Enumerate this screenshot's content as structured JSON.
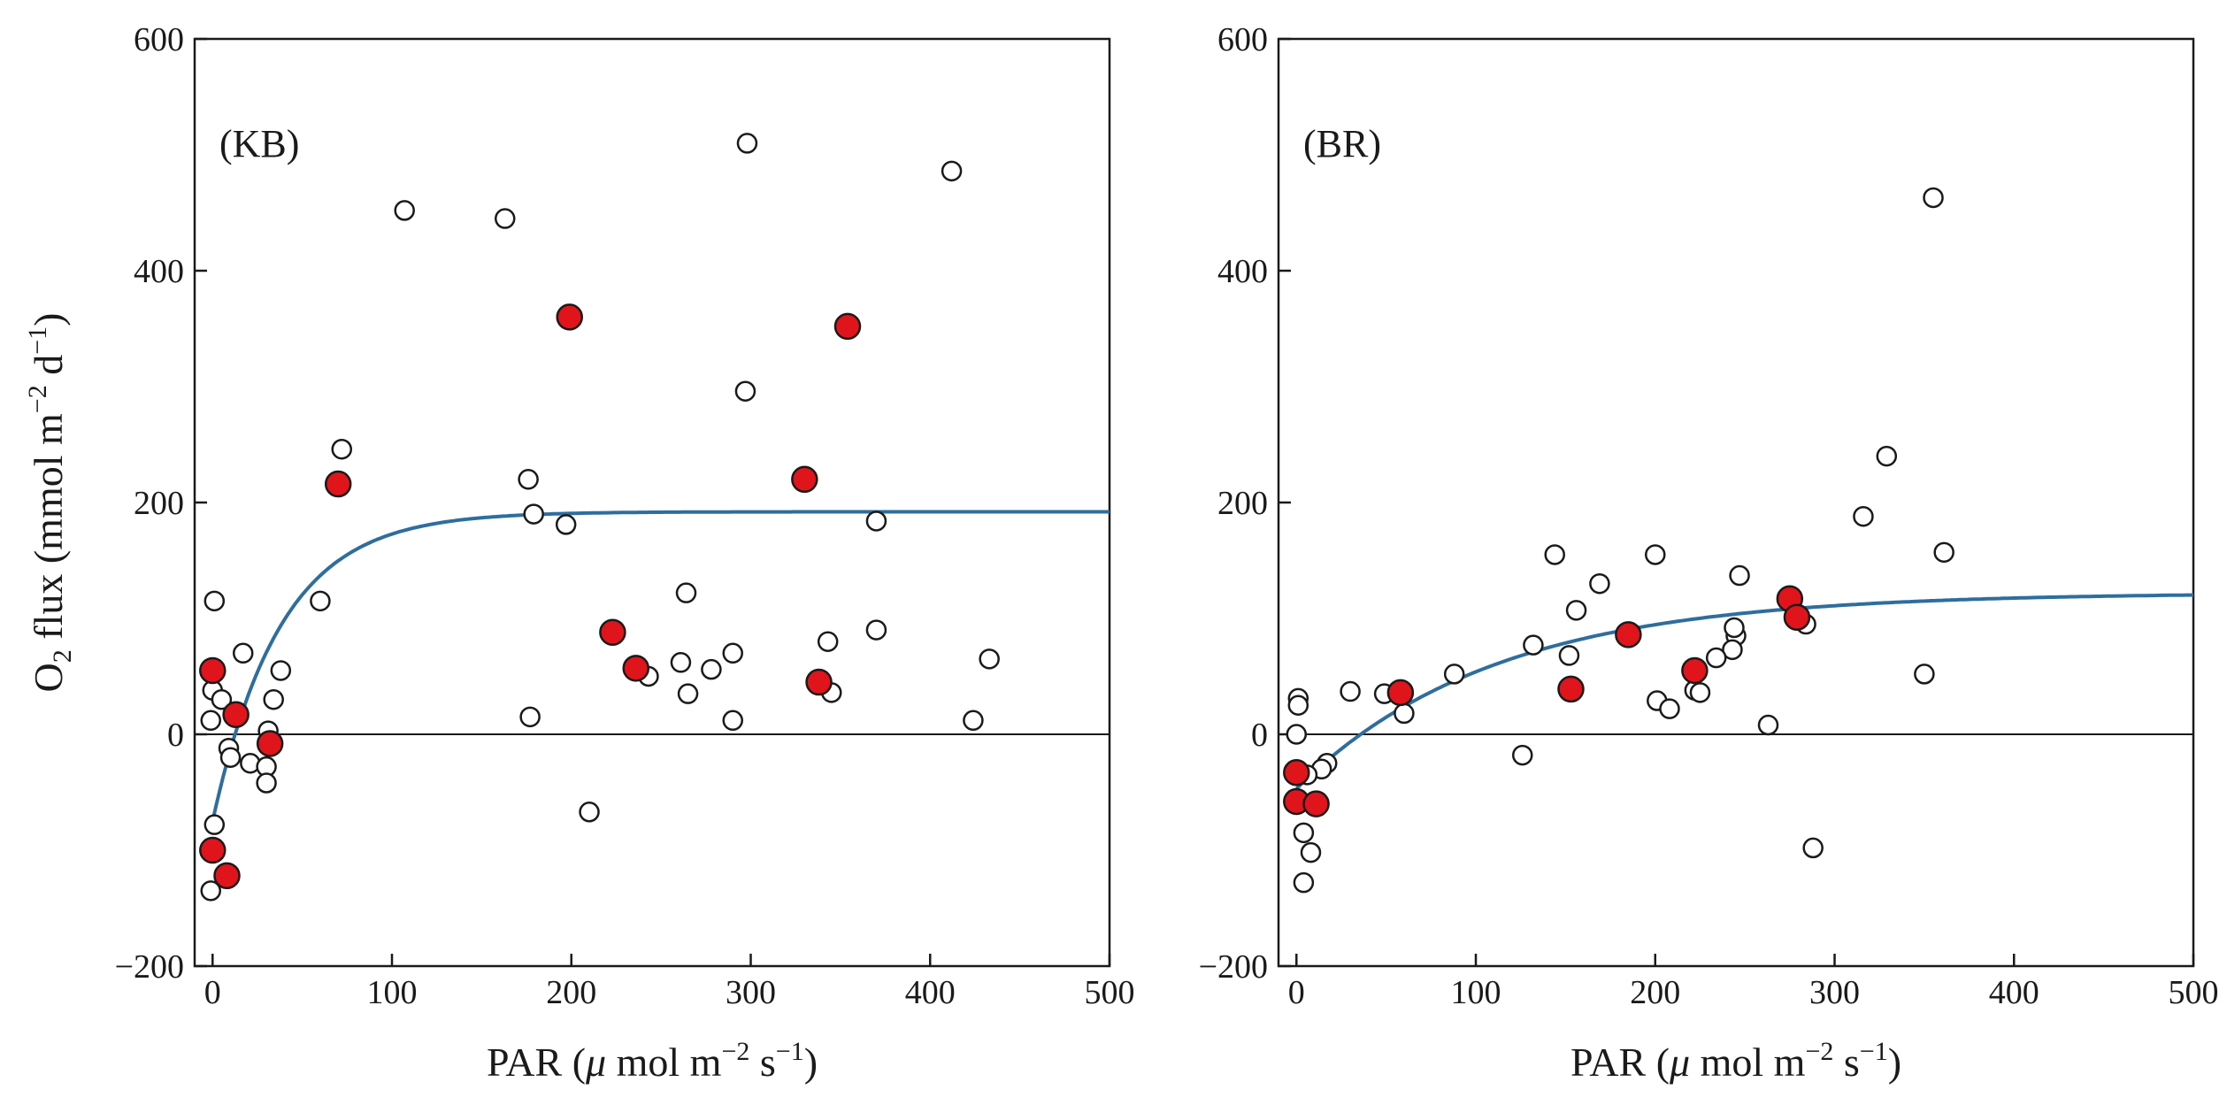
{
  "chart_data": [
    {
      "type": "scatter",
      "panel_label": "(KB)",
      "xlabel": {
        "prefix": "PAR (",
        "mu": "μ",
        "mid": " mol m",
        "exp1": "−2",
        "s": " s",
        "exp2": "−1",
        "suffix": ")"
      },
      "ylabel": {
        "o": "O",
        "sub": "2",
        "mid": " flux (mmol m",
        "exp1": "−2",
        "d": " d",
        "exp2": "−1",
        "suffix": ")"
      },
      "xlim": [
        -10,
        500
      ],
      "ylim": [
        -200,
        600
      ],
      "xticks": [
        0,
        100,
        200,
        300,
        400,
        500
      ],
      "yticks": [
        -200,
        0,
        200,
        400,
        600
      ],
      "ytick_labels": [
        "−200",
        "0",
        "200",
        "400",
        "600"
      ],
      "fit": {
        "pmax": 192,
        "r": -75,
        "k": 38
      },
      "series": [
        {
          "name": "open",
          "points": [
            [
              107,
              452
            ],
            [
              163,
              445
            ],
            [
              298,
              510
            ],
            [
              412,
              486
            ],
            [
              297,
              296
            ],
            [
              72,
              246
            ],
            [
              176,
              220
            ],
            [
              179,
              190
            ],
            [
              197,
              181
            ],
            [
              370,
              184
            ],
            [
              60,
              115
            ],
            [
              1,
              115
            ],
            [
              264,
              122
            ],
            [
              17,
              70
            ],
            [
              38,
              55
            ],
            [
              261,
              62
            ],
            [
              278,
              56
            ],
            [
              290,
              70
            ],
            [
              343,
              80
            ],
            [
              370,
              90
            ],
            [
              433,
              65
            ],
            [
              0,
              38
            ],
            [
              5,
              30
            ],
            [
              -1,
              12
            ],
            [
              265,
              35
            ],
            [
              345,
              36
            ],
            [
              243,
              50
            ],
            [
              34,
              30
            ],
            [
              177,
              15
            ],
            [
              290,
              12
            ],
            [
              424,
              12
            ],
            [
              31,
              3
            ],
            [
              9,
              -12
            ],
            [
              10,
              -20
            ],
            [
              21,
              -25
            ],
            [
              30,
              -28
            ],
            [
              30,
              -42
            ],
            [
              210,
              -67
            ],
            [
              1,
              -78
            ],
            [
              -1,
              -135
            ]
          ]
        },
        {
          "name": "red",
          "points": [
            [
              0,
              55
            ],
            [
              70,
              216
            ],
            [
              199,
              360
            ],
            [
              354,
              352
            ],
            [
              330,
              220
            ],
            [
              223,
              88
            ],
            [
              236,
              57
            ],
            [
              338,
              45
            ],
            [
              13,
              17
            ],
            [
              32,
              -8
            ],
            [
              0,
              -100
            ],
            [
              8,
              -122
            ]
          ]
        }
      ]
    },
    {
      "type": "scatter",
      "panel_label": "(BR)",
      "xlabel": {
        "prefix": "PAR (",
        "mu": "μ",
        "mid": " mol m",
        "exp1": "−2",
        "s": " s",
        "exp2": "−1",
        "suffix": ")"
      },
      "xlim": [
        -10,
        500
      ],
      "ylim": [
        -200,
        600
      ],
      "xticks": [
        0,
        100,
        200,
        300,
        400,
        500
      ],
      "yticks": [
        -200,
        0,
        200,
        400,
        600
      ],
      "ytick_labels": [
        "−200",
        "0",
        "200",
        "400",
        "600"
      ],
      "fit": {
        "pmax": 122,
        "r": -47,
        "k": 110
      },
      "series": [
        {
          "name": "open",
          "points": [
            [
              355,
              463
            ],
            [
              329,
              240
            ],
            [
              316,
              188
            ],
            [
              361,
              157
            ],
            [
              144,
              155
            ],
            [
              200,
              155
            ],
            [
              247,
              137
            ],
            [
              169,
              130
            ],
            [
              156,
              107
            ],
            [
              132,
              77
            ],
            [
              152,
              68
            ],
            [
              88,
              52
            ],
            [
              245,
              85
            ],
            [
              244,
              92
            ],
            [
              243,
              73
            ],
            [
              284,
              95
            ],
            [
              350,
              52
            ],
            [
              30,
              37
            ],
            [
              49,
              35
            ],
            [
              201,
              29
            ],
            [
              208,
              22
            ],
            [
              222,
              38
            ],
            [
              225,
              36
            ],
            [
              234,
              66
            ],
            [
              60,
              18
            ],
            [
              263,
              8
            ],
            [
              1,
              31
            ],
            [
              1,
              25
            ],
            [
              0,
              0
            ],
            [
              126,
              -18
            ],
            [
              17,
              -25
            ],
            [
              14,
              -30
            ],
            [
              6,
              -35
            ],
            [
              4,
              -85
            ],
            [
              8,
              -102
            ],
            [
              4,
              -128
            ],
            [
              288,
              -98
            ]
          ]
        },
        {
          "name": "red",
          "points": [
            [
              0,
              -33
            ],
            [
              0,
              -58
            ],
            [
              11,
              -60
            ],
            [
              58,
              36
            ],
            [
              153,
              39
            ],
            [
              185,
              86
            ],
            [
              222,
              55
            ],
            [
              275,
              117
            ],
            [
              279,
              101
            ]
          ]
        }
      ]
    }
  ]
}
